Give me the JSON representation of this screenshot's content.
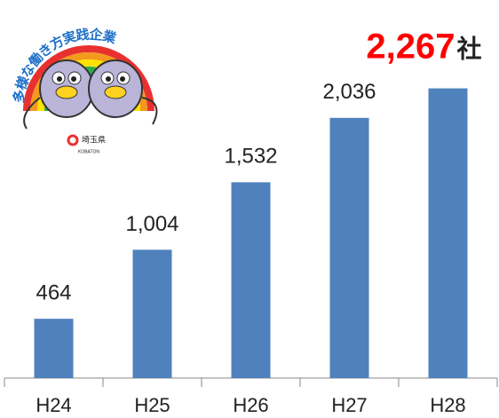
{
  "logo": {
    "title": "多様な働き方実践企業",
    "org": "埼玉県",
    "mascot": "KOBATON"
  },
  "chart_data": {
    "type": "bar",
    "categories": [
      "H24",
      "H25",
      "H26",
      "H27",
      "H28"
    ],
    "values": [
      464,
      1004,
      1532,
      2036,
      2267
    ],
    "value_labels": [
      "464",
      "1,004",
      "1,532",
      "2,036",
      "2,267"
    ],
    "unit_label": "社",
    "highlight_color": "#ff0000",
    "color": "#4f81bd",
    "ylim": [
      0,
      2500
    ]
  }
}
